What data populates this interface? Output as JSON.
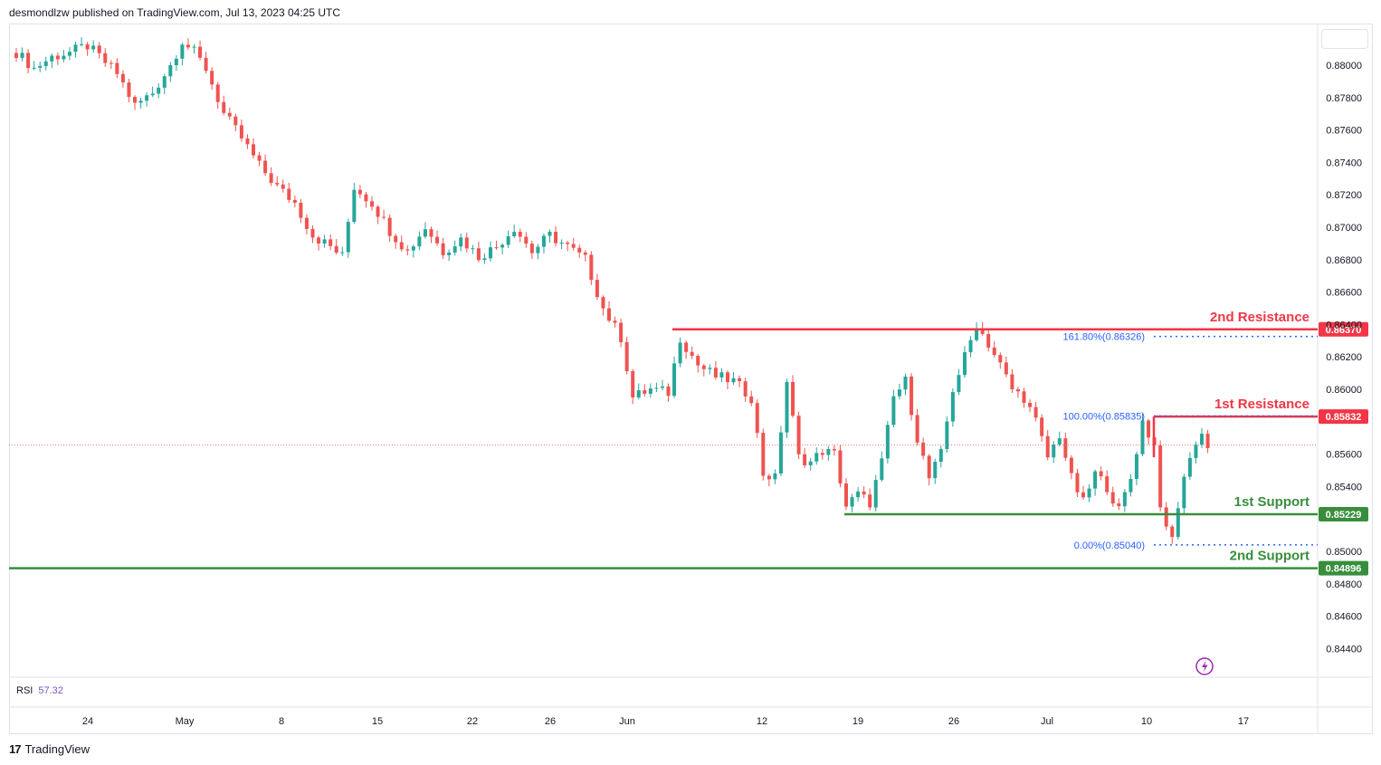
{
  "header": {
    "publisher": "desmondlzw published on TradingView.com, Jul 13, 2023 04:25 UTC"
  },
  "rsi": {
    "label": "RSI",
    "value": "57.32"
  },
  "brand": {
    "logo_text": "17",
    "name": "TradingView"
  },
  "icons": {
    "lightning": "lightning-icon",
    "logo": "tradingview-logo-icon"
  },
  "colors": {
    "up": "#26a69a",
    "down": "#ef5350",
    "resistance": "#f23645",
    "support": "#388e3c",
    "fib": "#2962ff"
  },
  "chart_data": {
    "type": "candlestick",
    "y_ticks": [
      "0.88000",
      "0.87800",
      "0.87600",
      "0.87400",
      "0.87200",
      "0.87000",
      "0.86800",
      "0.86600",
      "0.86400",
      "0.86200",
      "0.86000",
      "0.85600",
      "0.85400",
      "0.85000",
      "0.84800",
      "0.84600",
      "0.84400"
    ],
    "x_ticks": [
      "24",
      "May",
      "8",
      "15",
      "22",
      "26",
      "Jun",
      "12",
      "19",
      "26",
      "Jul",
      "10",
      "17"
    ],
    "ylim": [
      0.8432,
      0.882
    ],
    "levels": [
      {
        "name": "2nd Resistance",
        "price": "0.86370",
        "value": 0.8637,
        "kind": "resistance"
      },
      {
        "name": "1st Resistance",
        "price": "0.85832",
        "value": 0.85832,
        "kind": "resistance"
      },
      {
        "name": "1st Support",
        "price": "0.85229",
        "value": 0.85229,
        "kind": "support"
      },
      {
        "name": "2nd Support",
        "price": "0.84896",
        "value": 0.84896,
        "kind": "support"
      }
    ],
    "fib_levels": [
      {
        "label": "161.80%(0.86326)",
        "value": 0.86326
      },
      {
        "label": "100.00%(0.85835)",
        "value": 0.85835
      },
      {
        "label": "0.00%(0.85040)",
        "value": 0.8504
      }
    ],
    "last_price": 0.85657,
    "anchors": [
      [
        0,
        0.8808
      ],
      [
        3,
        0.8798
      ],
      [
        6,
        0.8805
      ],
      [
        9,
        0.8808
      ],
      [
        12,
        0.8812
      ],
      [
        17,
        0.8795
      ],
      [
        20,
        0.8775
      ],
      [
        23,
        0.8783
      ],
      [
        26,
        0.88
      ],
      [
        28,
        0.8815
      ],
      [
        30,
        0.8808
      ],
      [
        32,
        0.8798
      ],
      [
        35,
        0.877
      ],
      [
        38,
        0.8755
      ],
      [
        41,
        0.8738
      ],
      [
        44,
        0.8725
      ],
      [
        47,
        0.8715
      ],
      [
        50,
        0.8695
      ],
      [
        53,
        0.8688
      ],
      [
        55,
        0.8682
      ],
      [
        57,
        0.8725
      ],
      [
        60,
        0.8715
      ],
      [
        63,
        0.8698
      ],
      [
        66,
        0.8685
      ],
      [
        69,
        0.87
      ],
      [
        72,
        0.8685
      ],
      [
        75,
        0.8693
      ],
      [
        78,
        0.8682
      ],
      [
        81,
        0.8688
      ],
      [
        84,
        0.87
      ],
      [
        87,
        0.8685
      ],
      [
        90,
        0.8695
      ],
      [
        93,
        0.8688
      ],
      [
        96,
        0.868
      ],
      [
        99,
        0.865
      ],
      [
        102,
        0.8632
      ],
      [
        104,
        0.8595
      ],
      [
        107,
        0.86
      ],
      [
        110,
        0.8598
      ],
      [
        112,
        0.8632
      ],
      [
        115,
        0.8615
      ],
      [
        118,
        0.8608
      ],
      [
        121,
        0.8605
      ],
      [
        124,
        0.8595
      ],
      [
        126,
        0.8548
      ],
      [
        128,
        0.8545
      ],
      [
        130,
        0.8605
      ],
      [
        132,
        0.8558
      ],
      [
        134,
        0.8555
      ],
      [
        136,
        0.8562
      ],
      [
        138,
        0.856
      ],
      [
        140,
        0.8528
      ],
      [
        142,
        0.8535
      ],
      [
        144,
        0.853
      ],
      [
        146,
        0.8555
      ],
      [
        148,
        0.8595
      ],
      [
        150,
        0.8605
      ],
      [
        152,
        0.857
      ],
      [
        154,
        0.8545
      ],
      [
        156,
        0.856
      ],
      [
        158,
        0.86
      ],
      [
        160,
        0.862
      ],
      [
        162,
        0.864
      ],
      [
        164,
        0.8628
      ],
      [
        166,
        0.8615
      ],
      [
        168,
        0.86
      ],
      [
        170,
        0.8595
      ],
      [
        172,
        0.858
      ],
      [
        174,
        0.8558
      ],
      [
        176,
        0.8572
      ],
      [
        178,
        0.8545
      ],
      [
        180,
        0.853
      ],
      [
        182,
        0.8548
      ],
      [
        184,
        0.854
      ],
      [
        186,
        0.8525
      ],
      [
        188,
        0.8545
      ],
      [
        190,
        0.858
      ],
      [
        192,
        0.8565
      ],
      [
        193,
        0.853
      ],
      [
        194,
        0.8512
      ],
      [
        195,
        0.8508
      ],
      [
        196,
        0.8528
      ],
      [
        198,
        0.856
      ],
      [
        200,
        0.8572
      ],
      [
        201,
        0.8566
      ]
    ]
  }
}
